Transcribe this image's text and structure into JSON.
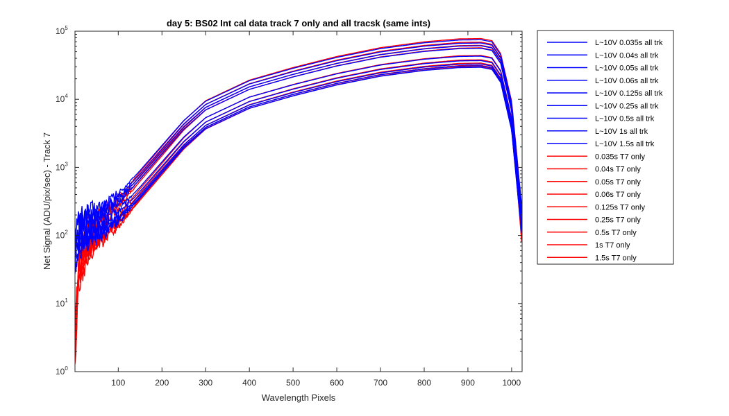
{
  "chart_data": {
    "type": "line",
    "title": "day 5: BS02   Int cal data track 7 only and all tracsk (same ints)",
    "xlabel": "Wavelength Pixels",
    "ylabel": "Net Signal (ADU/pix/sec) - Track 7",
    "xlim": [
      1,
      1024
    ],
    "ylim": [
      1,
      100000
    ],
    "yscale": "log",
    "x_ticks": [
      100,
      200,
      300,
      400,
      500,
      600,
      700,
      800,
      900,
      1000
    ],
    "y_ticks": [
      {
        "value": 1,
        "base": "10",
        "exp": "0"
      },
      {
        "value": 10,
        "base": "10",
        "exp": "1"
      },
      {
        "value": 100,
        "base": "10",
        "exp": "2"
      },
      {
        "value": 1000,
        "base": "10",
        "exp": "3"
      },
      {
        "value": 10000,
        "base": "10",
        "exp": "4"
      },
      {
        "value": 100000,
        "base": "10",
        "exp": "5"
      }
    ],
    "grid": false,
    "legend_position": "outside-right",
    "colors": {
      "all_trk": "#0000ff",
      "t7_only": "#ff0000"
    },
    "profile_x": [
      1,
      10,
      30,
      60,
      100,
      150,
      200,
      250,
      300,
      400,
      500,
      600,
      700,
      800,
      880,
      930,
      955,
      975,
      1000,
      1015,
      1024
    ],
    "series": [
      {
        "name": "L~10V 0.035s all trk",
        "color": "#0000ff",
        "peak": 75000
      },
      {
        "name": "L~10V 0.04s all trk",
        "color": "#0000ff",
        "peak": 67000
      },
      {
        "name": "L~10V 0.05s all trk",
        "color": "#0000ff",
        "peak": 61000
      },
      {
        "name": "L~10V 0.06s all trk",
        "color": "#0000ff",
        "peak": 56000
      },
      {
        "name": "L~10V 0.125s all trk",
        "color": "#0000ff",
        "peak": 43000
      },
      {
        "name": "L~10V 0.25s all trk",
        "color": "#0000ff",
        "peak": 37000
      },
      {
        "name": "L~10V 0.5s all trk",
        "color": "#0000ff",
        "peak": 33000
      },
      {
        "name": "L~10V 1s all trk",
        "color": "#0000ff",
        "peak": 31000
      },
      {
        "name": "L~10V 1.5s all trk",
        "color": "#0000ff",
        "peak": 29500
      },
      {
        "name": "0.035s T7 only",
        "color": "#ff0000",
        "peak": 78000
      },
      {
        "name": "0.04s T7 only",
        "color": "#ff0000",
        "peak": 69000
      },
      {
        "name": "0.05s T7 only",
        "color": "#ff0000",
        "peak": 62000
      },
      {
        "name": "0.06s T7 only",
        "color": "#ff0000",
        "peak": 57000
      },
      {
        "name": "0.125s T7 only",
        "color": "#ff0000",
        "peak": 44000
      },
      {
        "name": "0.25s T7 only",
        "color": "#ff0000",
        "peak": 38000
      },
      {
        "name": "0.5s T7 only",
        "color": "#ff0000",
        "peak": 34000
      },
      {
        "name": "1s T7 only",
        "color": "#ff0000",
        "peak": 31500
      },
      {
        "name": "1.5s T7 only",
        "color": "#ff0000",
        "peak": 30000
      }
    ]
  }
}
